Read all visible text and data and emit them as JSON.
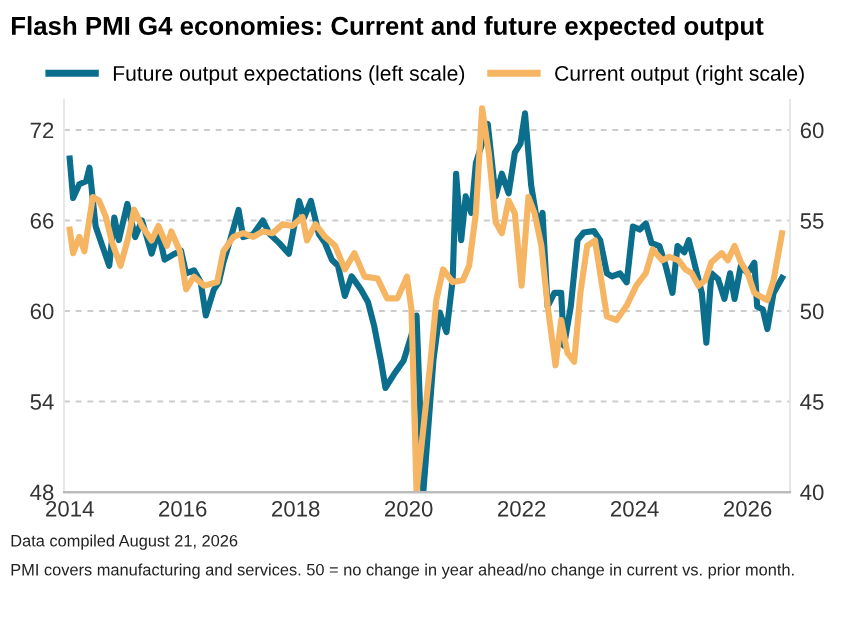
{
  "chart_data": {
    "type": "line",
    "title": "Flash PMI G4 economies: Current and future expected output",
    "xlim": [
      2013.9,
      2026.75
    ],
    "xticks": [
      2014,
      2016,
      2018,
      2020,
      2022,
      2024,
      2026
    ],
    "ylim": [
      48,
      74
    ],
    "yticks": [
      48,
      54,
      60,
      66,
      72
    ],
    "y2lim": [
      40,
      61.67
    ],
    "y2ticks": [
      40,
      45,
      50,
      55,
      60
    ],
    "grid": "y",
    "legend": "top",
    "marker": "none",
    "line_style": "solid",
    "annotations": [
      "Data compiled August 21, 2026",
      "PMI covers manufacturing and services. 50 = no change in year ahead/no change in current vs. prior month."
    ],
    "series": [
      {
        "name": "Future output expectations (left scale)",
        "color": "#0b6e8c",
        "x": [
          2014.0,
          2014.06,
          2014.17,
          2014.29,
          2014.35,
          2014.46,
          2014.58,
          2014.7,
          2014.79,
          2014.87,
          2015.02,
          2015.16,
          2015.28,
          2015.45,
          2015.57,
          2015.68,
          2015.86,
          2015.97,
          2016.06,
          2016.2,
          2016.32,
          2016.41,
          2016.55,
          2016.64,
          2016.72,
          2016.84,
          2016.99,
          2017.07,
          2017.25,
          2017.42,
          2017.54,
          2017.71,
          2017.88,
          2018.06,
          2018.15,
          2018.27,
          2018.41,
          2018.52,
          2018.64,
          2018.75,
          2018.87,
          2018.99,
          2019.16,
          2019.28,
          2019.39,
          2019.51,
          2019.59,
          2019.74,
          2019.91,
          2020.05,
          2020.14,
          2020.26,
          2020.44,
          2020.55,
          2020.67,
          2020.78,
          2020.84,
          2020.93,
          2021.01,
          2021.11,
          2021.19,
          2021.3,
          2021.4,
          2021.54,
          2021.65,
          2021.77,
          2021.88,
          2021.98,
          2022.06,
          2022.17,
          2022.29,
          2022.37,
          2022.46,
          2022.58,
          2022.7,
          2022.75,
          2022.87,
          2022.99,
          2023.1,
          2023.28,
          2023.39,
          2023.51,
          2023.6,
          2023.74,
          2023.86,
          2023.97,
          2024.09,
          2024.2,
          2024.3,
          2024.44,
          2024.55,
          2024.67,
          2024.76,
          2024.88,
          2024.96,
          2025.07,
          2025.19,
          2025.27,
          2025.36,
          2025.48,
          2025.59,
          2025.69,
          2025.77,
          2025.88,
          2026.0,
          2026.12,
          2026.17,
          2026.27,
          2026.35,
          2026.46,
          2026.61
        ],
        "values": [
          70.1,
          67.5,
          68.4,
          68.6,
          69.5,
          65.6,
          64.3,
          63.0,
          66.2,
          64.7,
          67.1,
          64.9,
          66.0,
          63.8,
          65.3,
          63.4,
          63.8,
          64.0,
          62.5,
          62.7,
          61.9,
          59.7,
          61.4,
          61.9,
          63.2,
          64.7,
          66.7,
          64.9,
          65.1,
          66.0,
          65.1,
          64.5,
          63.8,
          67.3,
          66.2,
          67.3,
          65.1,
          64.5,
          63.4,
          63.0,
          61.0,
          62.3,
          61.4,
          60.6,
          59.0,
          56.7,
          54.9,
          55.8,
          56.7,
          58.4,
          59.7,
          48,
          56.8,
          59.9,
          58.6,
          62.1,
          69.1,
          64.7,
          67.6,
          66.5,
          69.8,
          71.1,
          72.4,
          67.6,
          69.1,
          67.8,
          70.5,
          71.1,
          73.1,
          68.3,
          65.6,
          66.5,
          60.3,
          61.2,
          61.2,
          57.7,
          60.3,
          64.7,
          65.2,
          65.3,
          64.7,
          62.5,
          62.3,
          62.5,
          61.9,
          65.6,
          65.4,
          65.8,
          64.5,
          64.3,
          63.0,
          61.2,
          64.3,
          63.9,
          64.7,
          63.0,
          61.2,
          57.9,
          62.5,
          62.1,
          60.8,
          62.5,
          60.8,
          63.0,
          62.5,
          63.2,
          60.3,
          60.1,
          58.8,
          61.2,
          62.2
        ]
      },
      {
        "name": "Current output (right scale)",
        "color": "#f5b563",
        "axis": "y2",
        "x": [
          2014.0,
          2014.06,
          2014.17,
          2014.26,
          2014.41,
          2014.52,
          2014.64,
          2014.75,
          2014.9,
          2015.04,
          2015.14,
          2015.28,
          2015.45,
          2015.57,
          2015.72,
          2015.8,
          2015.95,
          2016.06,
          2016.2,
          2016.38,
          2016.61,
          2016.72,
          2016.9,
          2017.07,
          2017.25,
          2017.42,
          2017.59,
          2017.77,
          2017.94,
          2018.12,
          2018.2,
          2018.35,
          2018.52,
          2018.7,
          2018.87,
          2019.04,
          2019.22,
          2019.45,
          2019.62,
          2019.8,
          2019.97,
          2020.05,
          2020.14,
          2020.38,
          2020.49,
          2020.61,
          2020.78,
          2020.96,
          2021.07,
          2021.19,
          2021.3,
          2021.42,
          2021.54,
          2021.65,
          2021.77,
          2021.88,
          2022.0,
          2022.12,
          2022.23,
          2022.35,
          2022.46,
          2022.6,
          2022.7,
          2022.81,
          2022.93,
          2023.04,
          2023.16,
          2023.3,
          2023.39,
          2023.51,
          2023.68,
          2023.86,
          2024.03,
          2024.2,
          2024.32,
          2024.49,
          2024.61,
          2024.78,
          2024.9,
          2025.01,
          2025.13,
          2025.25,
          2025.36,
          2025.54,
          2025.65,
          2025.77,
          2025.88,
          2026.0,
          2026.12,
          2026.23,
          2026.35,
          2026.46,
          2026.61
        ],
        "values": [
          54.5,
          53.2,
          54.1,
          53.3,
          56.3,
          56.1,
          55.2,
          53.8,
          52.5,
          54.1,
          55.6,
          54.7,
          53.9,
          54.7,
          53.6,
          54.4,
          53.3,
          51.2,
          51.9,
          51.4,
          51.6,
          53.3,
          54.1,
          54.3,
          54.1,
          54.4,
          54.3,
          54.8,
          54.7,
          55.2,
          53.9,
          54.8,
          54.1,
          53.6,
          52.3,
          53.2,
          51.9,
          51.8,
          50.7,
          50.7,
          51.9,
          50.1,
          40,
          47.0,
          50.6,
          52.3,
          51.6,
          51.7,
          52.5,
          55.4,
          61.2,
          58.7,
          54.9,
          54.3,
          56.1,
          55.4,
          51.4,
          56.3,
          55.4,
          53.6,
          50.3,
          47.0,
          49.5,
          47.7,
          47.2,
          51.0,
          53.6,
          53.9,
          52.1,
          49.7,
          49.5,
          50.3,
          51.4,
          52.1,
          53.4,
          52.8,
          53.0,
          52.8,
          52.3,
          52.1,
          51.4,
          51.7,
          52.7,
          53.2,
          52.8,
          53.6,
          52.7,
          52.1,
          51.0,
          50.8,
          50.6,
          51.7,
          54.3
        ]
      }
    ]
  }
}
